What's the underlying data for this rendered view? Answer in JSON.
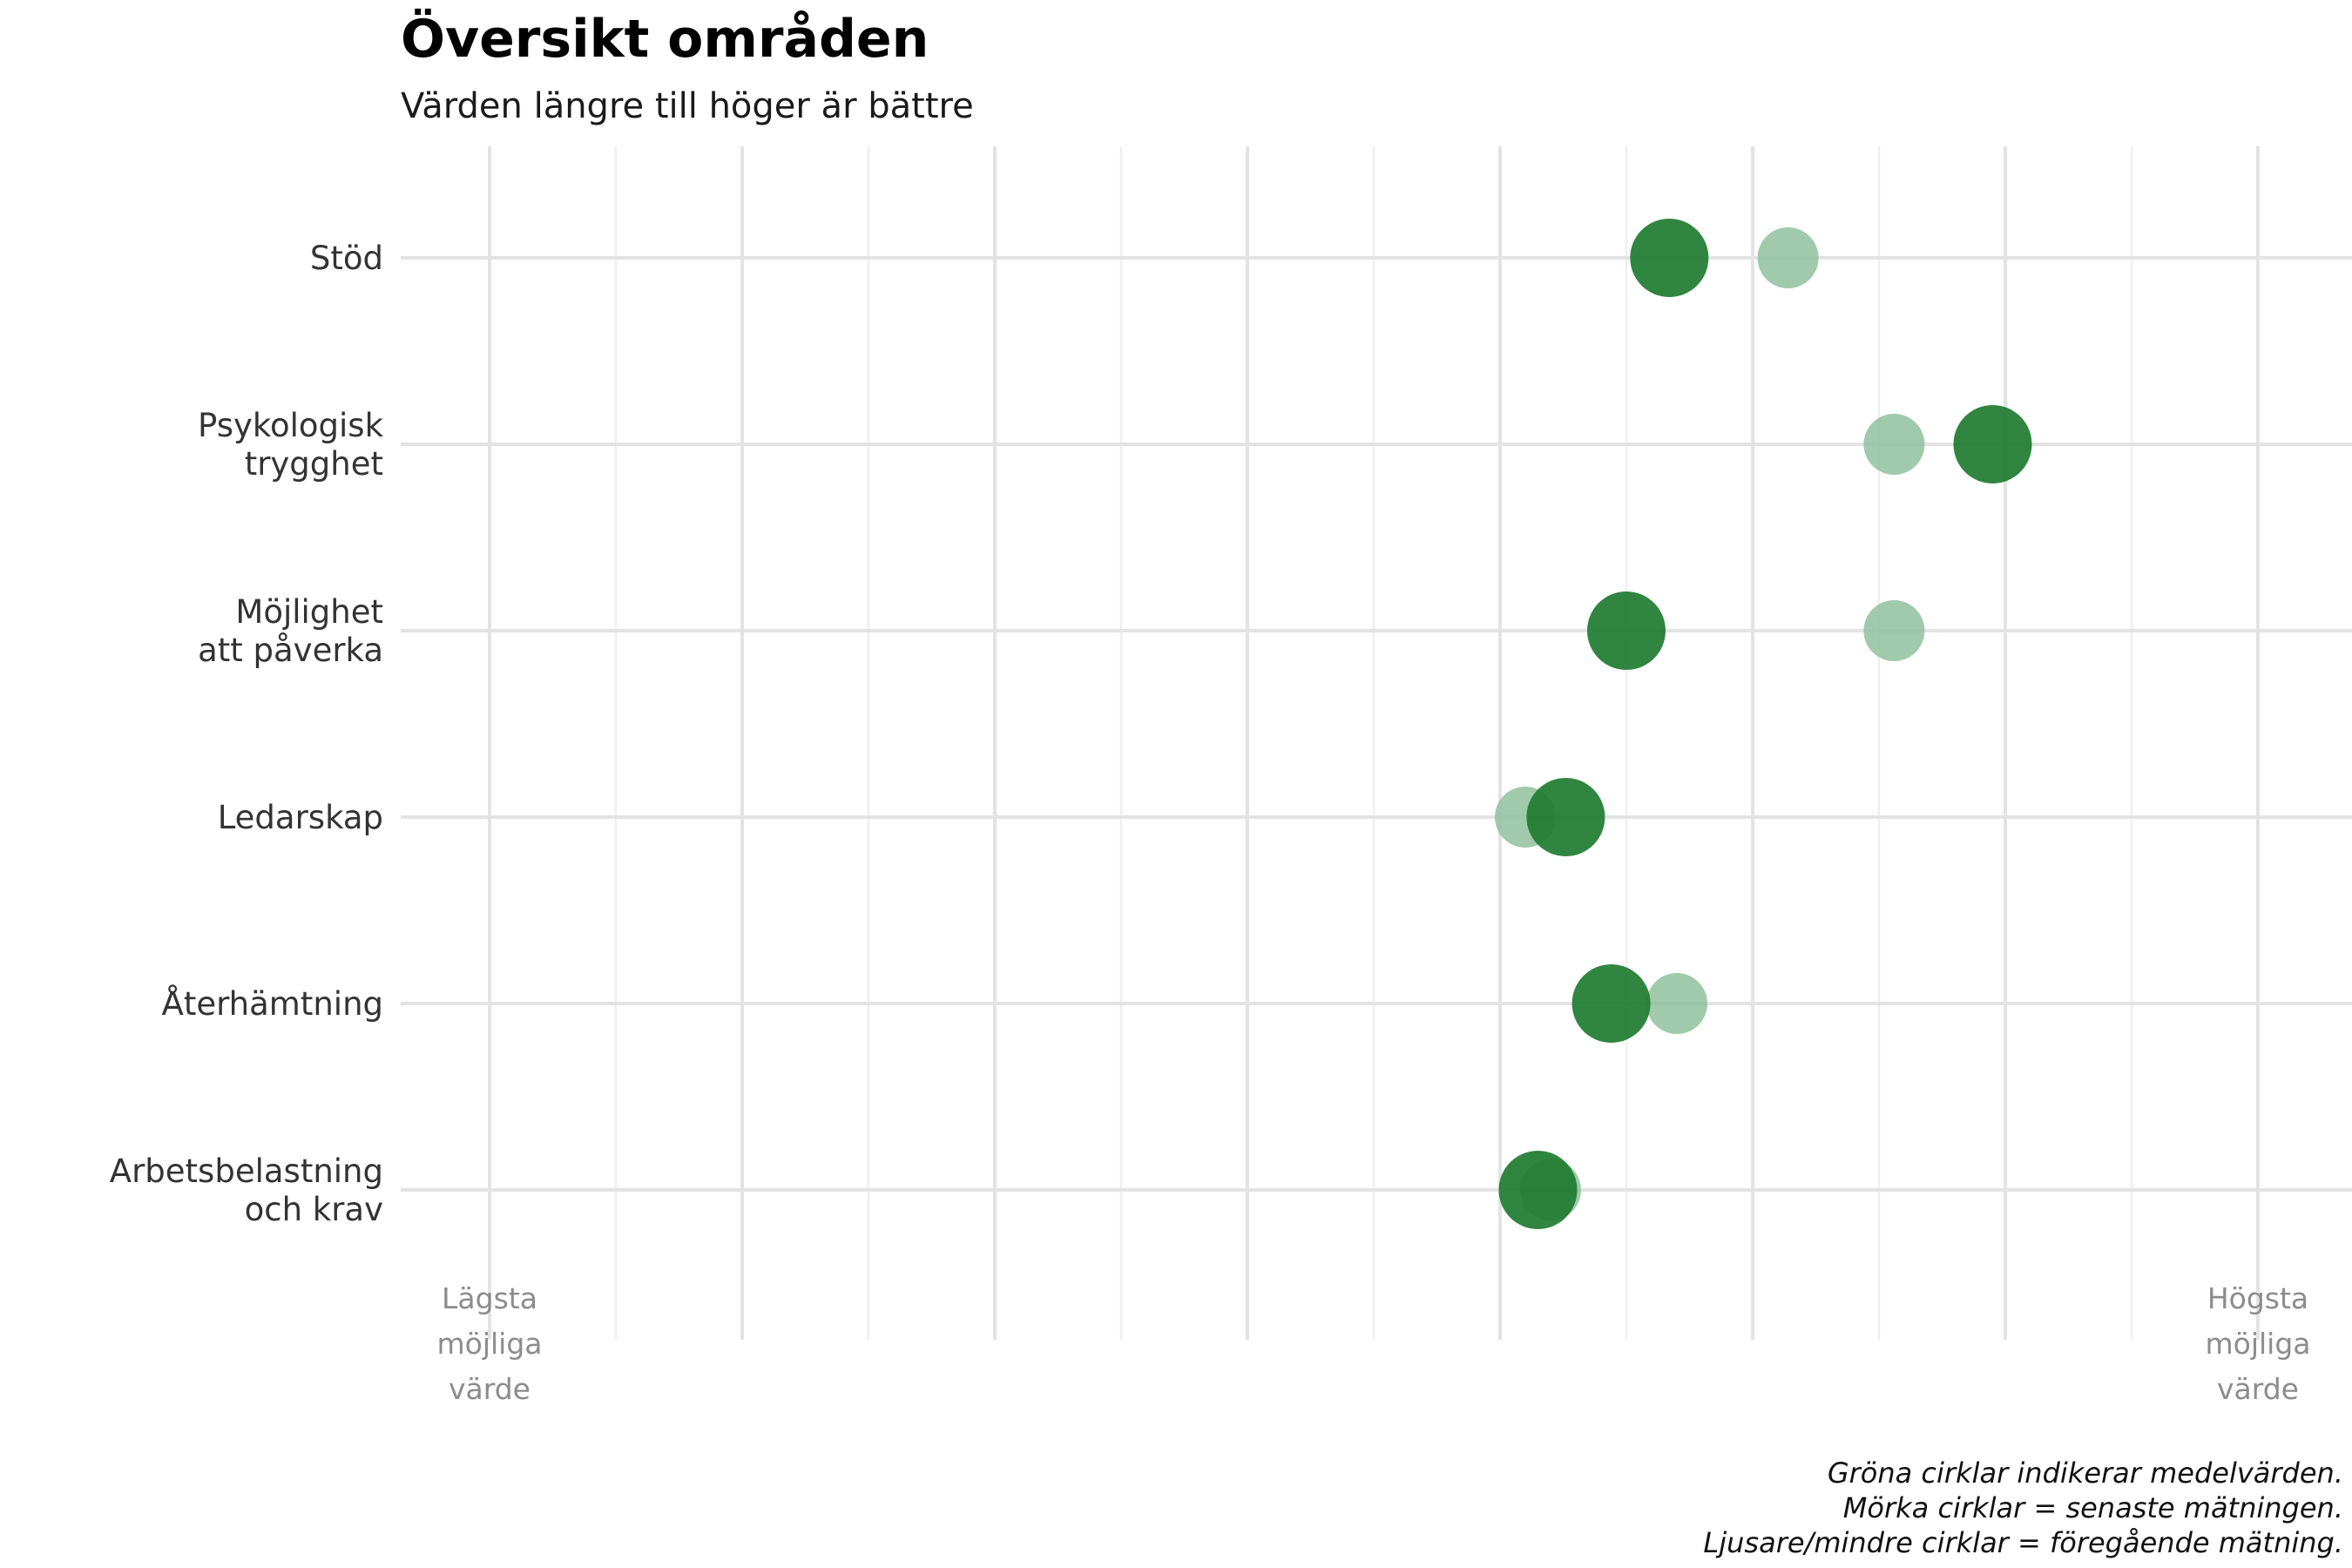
{
  "chart_data": {
    "type": "dot-plot",
    "title": "Översikt områden",
    "subtitle": "Värden längre till höger är bättre",
    "xlim": [
      0,
      7
    ],
    "grid": true,
    "axis_end_labels": {
      "min": [
        "Lägsta",
        "möjliga",
        "värde"
      ],
      "max": [
        "Högsta",
        "möjliga",
        "värde"
      ]
    },
    "categories": [
      {
        "label": [
          "Stöd"
        ],
        "previous": 5.14,
        "latest": 4.67
      },
      {
        "label": [
          "Psykologisk",
          "trygghet"
        ],
        "previous": 5.56,
        "latest": 5.95
      },
      {
        "label": [
          "Möjlighet",
          "att påverka"
        ],
        "previous": 5.56,
        "latest": 4.5
      },
      {
        "label": [
          "Ledarskap"
        ],
        "previous": 4.1,
        "latest": 4.26
      },
      {
        "label": [
          "Återhämtning"
        ],
        "previous": 4.7,
        "latest": 4.44
      },
      {
        "label": [
          "Arbetsbelastning",
          "och krav"
        ],
        "previous": 4.2,
        "latest": 4.15
      }
    ],
    "caption": [
      "Gröna cirklar indikerar medelvärden.",
      "Mörka cirklar = senaste mätningen.",
      "Ljusare/mindre cirklar = föregående mätning."
    ],
    "colors": {
      "latest": "#1e7b30",
      "previous": "#8fc19c"
    }
  }
}
